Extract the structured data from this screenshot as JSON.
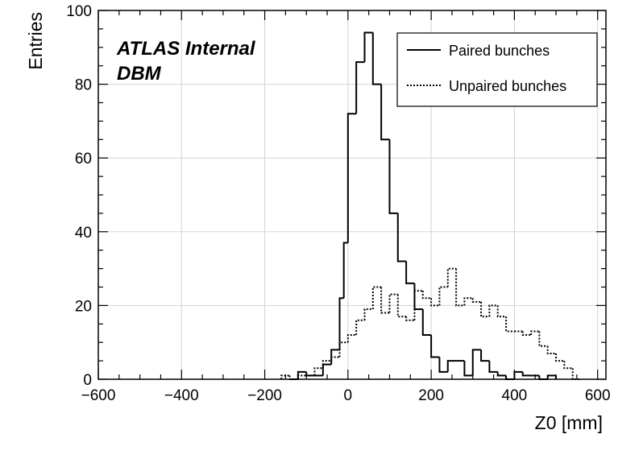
{
  "chart_data": {
    "type": "histogram",
    "xlabel": "Z0 [mm]",
    "ylabel": "Entries",
    "xlim": [
      -600,
      620
    ],
    "ylim": [
      0,
      100
    ],
    "xticks": [
      -600,
      -400,
      -200,
      0,
      200,
      400,
      600
    ],
    "xtick_labels": [
      "−600",
      "−400",
      "−200",
      "0",
      "200",
      "400",
      "600"
    ],
    "yticks": [
      0,
      20,
      40,
      60,
      80,
      100
    ],
    "ytick_labels": [
      "0",
      "20",
      "40",
      "60",
      "80",
      "100"
    ],
    "grid": true,
    "legend_position": "top-right",
    "bin_width": 20,
    "annotations": [
      "ATLAS Internal",
      "DBM"
    ],
    "series": [
      {
        "name": "Paired bunches",
        "style": "solid",
        "bins": [
          [
            -140,
            0
          ],
          [
            -120,
            2
          ],
          [
            -100,
            1
          ],
          [
            -80,
            1
          ],
          [
            -60,
            4
          ],
          [
            -40,
            8
          ],
          [
            -20,
            22
          ],
          [
            -10,
            37
          ],
          [
            0,
            72
          ],
          [
            20,
            86
          ],
          [
            40,
            94
          ],
          [
            60,
            80
          ],
          [
            80,
            65
          ],
          [
            100,
            45
          ],
          [
            120,
            32
          ],
          [
            140,
            26
          ],
          [
            160,
            19
          ],
          [
            180,
            12
          ],
          [
            200,
            6
          ],
          [
            220,
            2
          ],
          [
            240,
            5
          ],
          [
            260,
            5
          ],
          [
            280,
            1
          ],
          [
            300,
            8
          ],
          [
            320,
            5
          ],
          [
            340,
            2
          ],
          [
            360,
            1
          ],
          [
            380,
            0
          ],
          [
            400,
            2
          ],
          [
            420,
            1
          ],
          [
            440,
            1
          ],
          [
            460,
            0
          ],
          [
            480,
            1
          ]
        ]
      },
      {
        "name": "Unpaired bunches",
        "style": "dotted",
        "bins": [
          [
            -160,
            1
          ],
          [
            -140,
            0
          ],
          [
            -120,
            1
          ],
          [
            -100,
            1
          ],
          [
            -80,
            3
          ],
          [
            -60,
            5
          ],
          [
            -40,
            6
          ],
          [
            -20,
            10
          ],
          [
            0,
            12
          ],
          [
            20,
            16
          ],
          [
            40,
            19
          ],
          [
            60,
            25
          ],
          [
            80,
            18
          ],
          [
            100,
            23
          ],
          [
            120,
            17
          ],
          [
            140,
            16
          ],
          [
            160,
            24
          ],
          [
            180,
            22
          ],
          [
            200,
            20
          ],
          [
            220,
            25
          ],
          [
            240,
            30
          ],
          [
            260,
            20
          ],
          [
            280,
            22
          ],
          [
            300,
            21
          ],
          [
            320,
            17
          ],
          [
            340,
            20
          ],
          [
            360,
            17
          ],
          [
            380,
            13
          ],
          [
            400,
            13
          ],
          [
            420,
            12
          ],
          [
            440,
            13
          ],
          [
            460,
            9
          ],
          [
            480,
            7
          ],
          [
            500,
            5
          ],
          [
            520,
            3
          ],
          [
            540,
            0
          ]
        ]
      }
    ]
  }
}
